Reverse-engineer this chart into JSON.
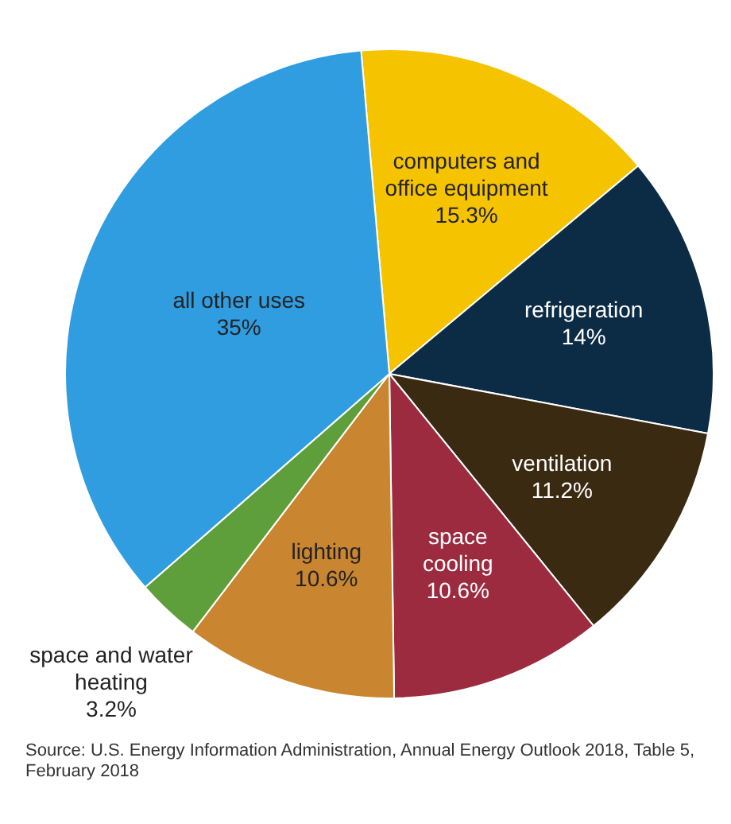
{
  "chart_data": {
    "type": "pie",
    "categories": [
      "computers and office equipment",
      "refrigeration",
      "ventilation",
      "space cooling",
      "lighting",
      "space and water heating",
      "all other uses"
    ],
    "values": [
      15.3,
      14,
      11.2,
      10.6,
      10.6,
      3.2,
      35
    ],
    "value_labels": [
      "15.3%",
      "14%",
      "11.2%",
      "10.6%",
      "10.6%",
      "3.2%",
      "35%"
    ],
    "colors": [
      "#f5c300",
      "#0c2b45",
      "#3b2a12",
      "#9c2b3f",
      "#c98530",
      "#5e9f3c",
      "#2f9de0"
    ],
    "legend": false,
    "annotations": [
      "Source: U.S. Energy Information Administration, Annual Energy Outlook 2018, Table 5, February 2018"
    ]
  }
}
